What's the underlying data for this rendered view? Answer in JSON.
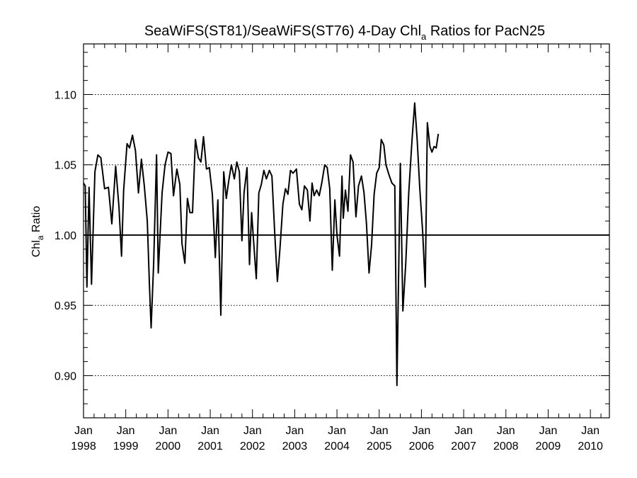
{
  "chart_data": {
    "type": "line",
    "title": {
      "main": "SeaWiFS(ST81)/SeaWiFS(ST76) 4-Day Chl",
      "subscript": "a",
      "rest": " Ratios for PacN25"
    },
    "ylabel": {
      "main": "Chl",
      "subscript": "a",
      "rest": " Ratio"
    },
    "xlim": [
      1998.0,
      2010.45
    ],
    "ylim": [
      0.87,
      1.136
    ],
    "yticks": [
      {
        "value": 0.9,
        "label": "0.90"
      },
      {
        "value": 0.95,
        "label": "0.95"
      },
      {
        "value": 1.0,
        "label": "1.00"
      },
      {
        "value": 1.05,
        "label": "1.05"
      },
      {
        "value": 1.1,
        "label": "1.10"
      }
    ],
    "xticks": [
      {
        "value": 1998,
        "month": "Jan",
        "year": "1998"
      },
      {
        "value": 1999,
        "month": "Jan",
        "year": "1999"
      },
      {
        "value": 2000,
        "month": "Jan",
        "year": "2000"
      },
      {
        "value": 2001,
        "month": "Jan",
        "year": "2001"
      },
      {
        "value": 2002,
        "month": "Jan",
        "year": "2002"
      },
      {
        "value": 2003,
        "month": "Jan",
        "year": "2003"
      },
      {
        "value": 2004,
        "month": "Jan",
        "year": "2004"
      },
      {
        "value": 2005,
        "month": "Jan",
        "year": "2005"
      },
      {
        "value": 2006,
        "month": "Jan",
        "year": "2006"
      },
      {
        "value": 2007,
        "month": "Jan",
        "year": "2007"
      },
      {
        "value": 2008,
        "month": "Jan",
        "year": "2008"
      },
      {
        "value": 2009,
        "month": "Jan",
        "year": "2009"
      },
      {
        "value": 2010,
        "month": "Jan",
        "year": "2010"
      }
    ],
    "grid": "dotted horizontal at y ticks",
    "reference_line": 1.0,
    "series": [
      {
        "color": "#000000",
        "points": [
          [
            1998.0,
            1.037
          ],
          [
            1998.04,
            1.035
          ],
          [
            1998.08,
            0.963
          ],
          [
            1998.13,
            1.034
          ],
          [
            1998.19,
            0.965
          ],
          [
            1998.27,
            1.045
          ],
          [
            1998.34,
            1.057
          ],
          [
            1998.41,
            1.055
          ],
          [
            1998.5,
            1.033
          ],
          [
            1998.59,
            1.034
          ],
          [
            1998.67,
            1.008
          ],
          [
            1998.76,
            1.049
          ],
          [
            1998.84,
            1.02
          ],
          [
            1998.9,
            0.985
          ],
          [
            1998.95,
            1.032
          ],
          [
            1999.03,
            1.065
          ],
          [
            1999.09,
            1.062
          ],
          [
            1999.16,
            1.071
          ],
          [
            1999.23,
            1.06
          ],
          [
            1999.3,
            1.03
          ],
          [
            1999.37,
            1.054
          ],
          [
            1999.44,
            1.035
          ],
          [
            1999.51,
            1.01
          ],
          [
            1999.56,
            0.965
          ],
          [
            1999.6,
            0.934
          ],
          [
            1999.66,
            0.98
          ],
          [
            1999.73,
            1.057
          ],
          [
            1999.77,
            0.973
          ],
          [
            1999.86,
            1.03
          ],
          [
            1999.93,
            1.05
          ],
          [
            2000.0,
            1.059
          ],
          [
            2000.07,
            1.058
          ],
          [
            2000.13,
            1.028
          ],
          [
            2000.21,
            1.047
          ],
          [
            2000.28,
            1.036
          ],
          [
            2000.33,
            0.994
          ],
          [
            2000.4,
            0.98
          ],
          [
            2000.46,
            1.026
          ],
          [
            2000.52,
            1.016
          ],
          [
            2000.58,
            1.016
          ],
          [
            2000.65,
            1.068
          ],
          [
            2000.72,
            1.055
          ],
          [
            2000.78,
            1.052
          ],
          [
            2000.84,
            1.07
          ],
          [
            2000.91,
            1.047
          ],
          [
            2000.98,
            1.048
          ],
          [
            2001.05,
            1.029
          ],
          [
            2001.12,
            0.984
          ],
          [
            2001.18,
            1.025
          ],
          [
            2001.25,
            0.943
          ],
          [
            2001.32,
            1.045
          ],
          [
            2001.38,
            1.026
          ],
          [
            2001.44,
            1.039
          ],
          [
            2001.5,
            1.05
          ],
          [
            2001.57,
            1.04
          ],
          [
            2001.63,
            1.052
          ],
          [
            2001.69,
            1.045
          ],
          [
            2001.75,
            0.996
          ],
          [
            2001.8,
            1.03
          ],
          [
            2001.87,
            1.048
          ],
          [
            2001.93,
            0.979
          ],
          [
            2001.98,
            1.016
          ],
          [
            2002.04,
            0.99
          ],
          [
            2002.09,
            0.969
          ],
          [
            2002.15,
            1.03
          ],
          [
            2002.21,
            1.036
          ],
          [
            2002.27,
            1.046
          ],
          [
            2002.33,
            1.04
          ],
          [
            2002.4,
            1.046
          ],
          [
            2002.46,
            1.042
          ],
          [
            2002.53,
            1.0
          ],
          [
            2002.59,
            0.967
          ],
          [
            2002.65,
            0.99
          ],
          [
            2002.72,
            1.022
          ],
          [
            2002.78,
            1.033
          ],
          [
            2002.84,
            1.029
          ],
          [
            2002.9,
            1.046
          ],
          [
            2002.96,
            1.044
          ],
          [
            2003.04,
            1.047
          ],
          [
            2003.11,
            1.022
          ],
          [
            2003.17,
            1.018
          ],
          [
            2003.23,
            1.035
          ],
          [
            2003.3,
            1.032
          ],
          [
            2003.36,
            1.01
          ],
          [
            2003.41,
            1.037
          ],
          [
            2003.46,
            1.028
          ],
          [
            2003.52,
            1.032
          ],
          [
            2003.58,
            1.028
          ],
          [
            2003.64,
            1.037
          ],
          [
            2003.71,
            1.05
          ],
          [
            2003.77,
            1.048
          ],
          [
            2003.83,
            1.033
          ],
          [
            2003.89,
            0.975
          ],
          [
            2003.95,
            1.025
          ],
          [
            2004.0,
            1.0
          ],
          [
            2004.06,
            0.985
          ],
          [
            2004.12,
            1.042
          ],
          [
            2004.15,
            1.012
          ],
          [
            2004.2,
            1.032
          ],
          [
            2004.26,
            1.017
          ],
          [
            2004.32,
            1.057
          ],
          [
            2004.38,
            1.052
          ],
          [
            2004.45,
            1.013
          ],
          [
            2004.51,
            1.035
          ],
          [
            2004.58,
            1.042
          ],
          [
            2004.64,
            1.03
          ],
          [
            2004.7,
            1.008
          ],
          [
            2004.76,
            0.973
          ],
          [
            2004.82,
            0.993
          ],
          [
            2004.88,
            1.029
          ],
          [
            2004.94,
            1.044
          ],
          [
            2005.0,
            1.048
          ],
          [
            2005.05,
            1.068
          ],
          [
            2005.11,
            1.064
          ],
          [
            2005.16,
            1.05
          ],
          [
            2005.23,
            1.043
          ],
          [
            2005.3,
            1.037
          ],
          [
            2005.37,
            1.035
          ],
          [
            2005.42,
            0.893
          ],
          [
            2005.5,
            1.051
          ],
          [
            2005.56,
            0.946
          ],
          [
            2005.63,
            0.98
          ],
          [
            2005.7,
            1.03
          ],
          [
            2005.78,
            1.069
          ],
          [
            2005.84,
            1.094
          ],
          [
            2005.9,
            1.067
          ],
          [
            2005.96,
            1.034
          ],
          [
            2006.03,
            1.002
          ],
          [
            2006.09,
            0.963
          ],
          [
            2006.14,
            1.08
          ],
          [
            2006.2,
            1.063
          ],
          [
            2006.25,
            1.059
          ],
          [
            2006.3,
            1.063
          ],
          [
            2006.35,
            1.062
          ],
          [
            2006.4,
            1.072
          ]
        ]
      }
    ]
  }
}
